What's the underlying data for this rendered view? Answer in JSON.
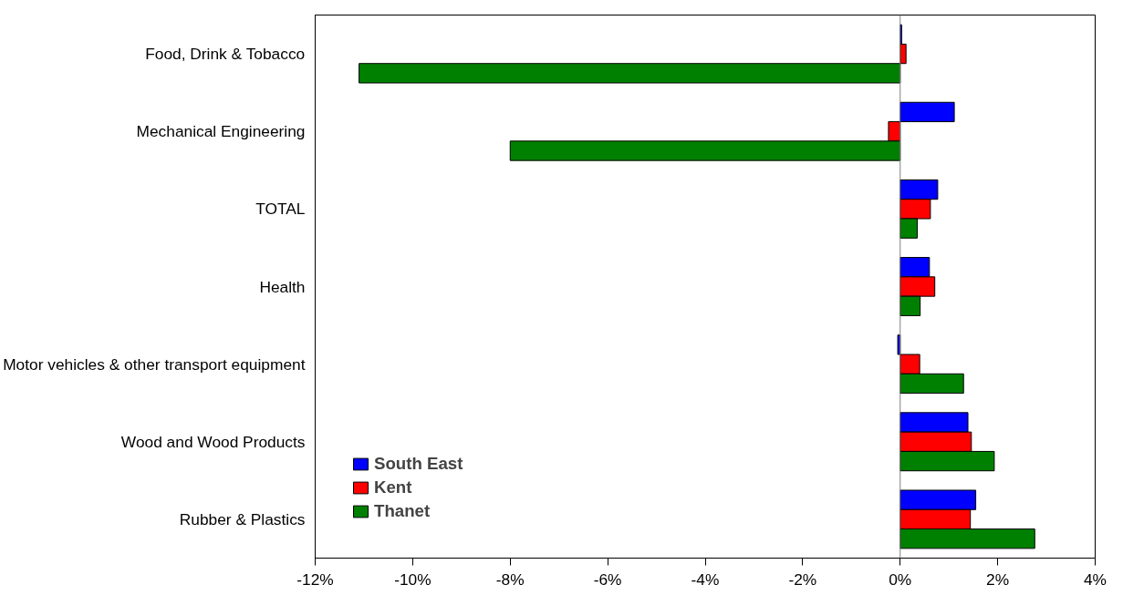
{
  "chart_data": {
    "type": "bar",
    "orientation": "horizontal",
    "categories": [
      "Food, Drink & Tobacco",
      "Mechanical Engineering",
      "TOTAL",
      "Health",
      "Motor vehicles & other transport equipment",
      "Wood and Wood Products",
      "Rubber & Plastics"
    ],
    "series": [
      {
        "name": "South East",
        "color": "#0000ff",
        "values": [
          0.03,
          1.11,
          0.77,
          0.6,
          -0.05,
          1.39,
          1.55
        ]
      },
      {
        "name": "Kent",
        "color": "#ff0000",
        "values": [
          0.12,
          -0.24,
          0.62,
          0.71,
          0.4,
          1.46,
          1.44
        ]
      },
      {
        "name": "Thanet",
        "color": "#008000",
        "values": [
          -11.1,
          -8.0,
          0.35,
          0.41,
          1.3,
          1.93,
          2.76
        ]
      }
    ],
    "xlim": [
      -12,
      4
    ],
    "xticks": [
      {
        "value": -12,
        "label": "-12%"
      },
      {
        "value": -10,
        "label": "-10%"
      },
      {
        "value": -8,
        "label": "-8%"
      },
      {
        "value": -6,
        "label": "-6%"
      },
      {
        "value": -4,
        "label": "-4%"
      },
      {
        "value": -2,
        "label": "-2%"
      },
      {
        "value": 0,
        "label": "0%"
      },
      {
        "value": 2,
        "label": "2%"
      },
      {
        "value": 4,
        "label": "4%"
      }
    ],
    "ref_lines": [
      {
        "axis": "x",
        "value": 0,
        "color": "#808080"
      }
    ],
    "legend": "bottom left"
  }
}
